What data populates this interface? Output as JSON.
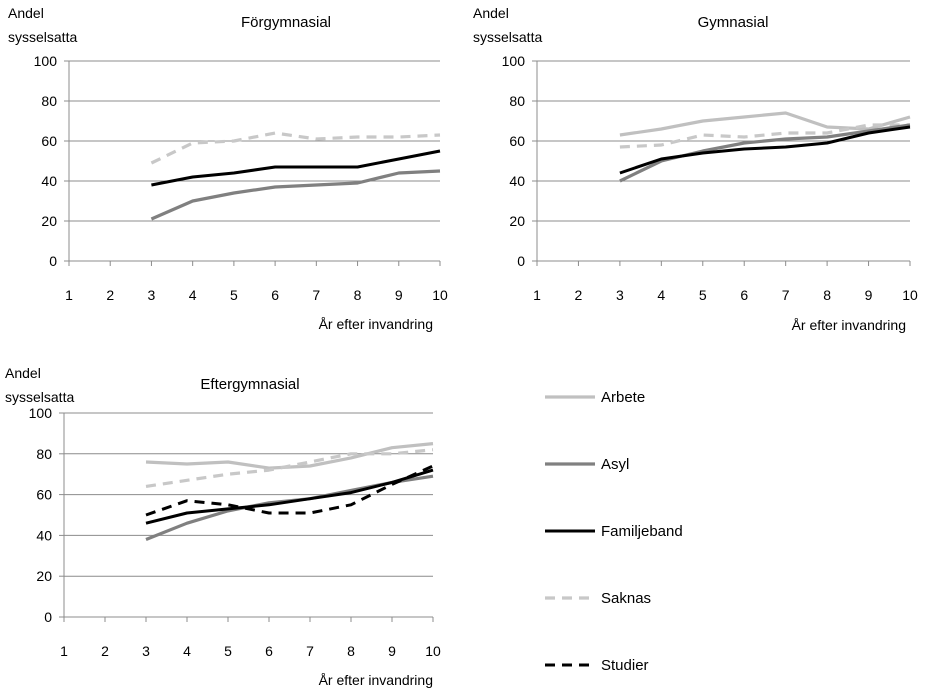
{
  "colors": {
    "Arbete": "#c0c0c0",
    "Asyl": "#808080",
    "Familjeband": "#000000",
    "Saknas": "#c8c8c8",
    "Studier": "#000000"
  },
  "legend": {
    "placement": "bottom-right",
    "items": [
      {
        "name": "Arbete",
        "style": "solid"
      },
      {
        "name": "Asyl",
        "style": "solid"
      },
      {
        "name": "Familjeband",
        "style": "solid"
      },
      {
        "name": "Saknas",
        "style": "dashed"
      },
      {
        "name": "Studier",
        "style": "dashed"
      }
    ]
  },
  "chart_data": [
    {
      "type": "line",
      "title": "Förgymnasial",
      "ylabel_line1": "Andel",
      "ylabel_line2": "sysselsatta",
      "xlabel": "År efter invandring",
      "x": [
        1,
        2,
        3,
        4,
        5,
        6,
        7,
        8,
        9,
        10
      ],
      "xlim": [
        1,
        10
      ],
      "ylim": [
        0,
        100
      ],
      "yticks": [
        0,
        20,
        40,
        60,
        80,
        100
      ],
      "grid": "horizontal",
      "series": [
        {
          "name": "Saknas",
          "x": [
            3,
            4,
            5,
            6,
            7,
            8,
            9,
            10
          ],
          "y": [
            49,
            59,
            60,
            64,
            61,
            62,
            62,
            63
          ]
        },
        {
          "name": "Familjeband",
          "x": [
            3,
            4,
            5,
            6,
            7,
            8,
            9,
            10
          ],
          "y": [
            38,
            42,
            44,
            47,
            47,
            47,
            51,
            55
          ]
        },
        {
          "name": "Asyl",
          "x": [
            3,
            4,
            5,
            6,
            7,
            8,
            9,
            10
          ],
          "y": [
            21,
            30,
            34,
            37,
            38,
            39,
            44,
            45
          ]
        }
      ]
    },
    {
      "type": "line",
      "title": "Gymnasial",
      "ylabel_line1": "Andel",
      "ylabel_line2": "sysselsatta",
      "xlabel": "År efter invandring",
      "x": [
        1,
        2,
        3,
        4,
        5,
        6,
        7,
        8,
        9,
        10
      ],
      "xlim": [
        1,
        10
      ],
      "ylim": [
        0,
        100
      ],
      "yticks": [
        0,
        20,
        40,
        60,
        80,
        100
      ],
      "grid": "horizontal",
      "series": [
        {
          "name": "Arbete",
          "x": [
            3,
            4,
            5,
            6,
            7,
            8,
            9,
            10
          ],
          "y": [
            63,
            66,
            70,
            72,
            74,
            67,
            66,
            72
          ]
        },
        {
          "name": "Saknas",
          "x": [
            3,
            4,
            5,
            6,
            7,
            8,
            9,
            10
          ],
          "y": [
            57,
            58,
            63,
            62,
            64,
            64,
            68,
            68
          ]
        },
        {
          "name": "Asyl",
          "x": [
            3,
            4,
            5,
            6,
            7,
            8,
            9,
            10
          ],
          "y": [
            40,
            50,
            55,
            59,
            61,
            62,
            65,
            68
          ]
        },
        {
          "name": "Familjeband",
          "x": [
            3,
            4,
            5,
            6,
            7,
            8,
            9,
            10
          ],
          "y": [
            44,
            51,
            54,
            56,
            57,
            59,
            64,
            67
          ]
        }
      ]
    },
    {
      "type": "line",
      "title": "Eftergymnasial",
      "ylabel_line1": "Andel",
      "ylabel_line2": "sysselsatta",
      "xlabel": "År efter invandring",
      "x": [
        1,
        2,
        3,
        4,
        5,
        6,
        7,
        8,
        9,
        10
      ],
      "xlim": [
        1,
        10
      ],
      "ylim": [
        0,
        100
      ],
      "yticks": [
        0,
        20,
        40,
        60,
        80,
        100
      ],
      "grid": "horizontal",
      "series": [
        {
          "name": "Arbete",
          "x": [
            3,
            4,
            5,
            6,
            7,
            8,
            9,
            10
          ],
          "y": [
            76,
            75,
            76,
            73,
            74,
            78,
            83,
            85
          ]
        },
        {
          "name": "Saknas",
          "x": [
            3,
            4,
            5,
            6,
            7,
            8,
            9,
            10
          ],
          "y": [
            64,
            67,
            70,
            72,
            76,
            80,
            80,
            82
          ]
        },
        {
          "name": "Asyl",
          "x": [
            3,
            4,
            5,
            6,
            7,
            8,
            9,
            10
          ],
          "y": [
            38,
            46,
            52,
            56,
            58,
            62,
            66,
            69
          ]
        },
        {
          "name": "Familjeband",
          "x": [
            3,
            4,
            5,
            6,
            7,
            8,
            9,
            10
          ],
          "y": [
            46,
            51,
            53,
            55,
            58,
            61,
            66,
            72
          ]
        },
        {
          "name": "Studier",
          "x": [
            3,
            4,
            5,
            6,
            7,
            8,
            9,
            10
          ],
          "y": [
            50,
            57,
            55,
            51,
            51,
            55,
            65,
            74
          ]
        }
      ]
    }
  ]
}
